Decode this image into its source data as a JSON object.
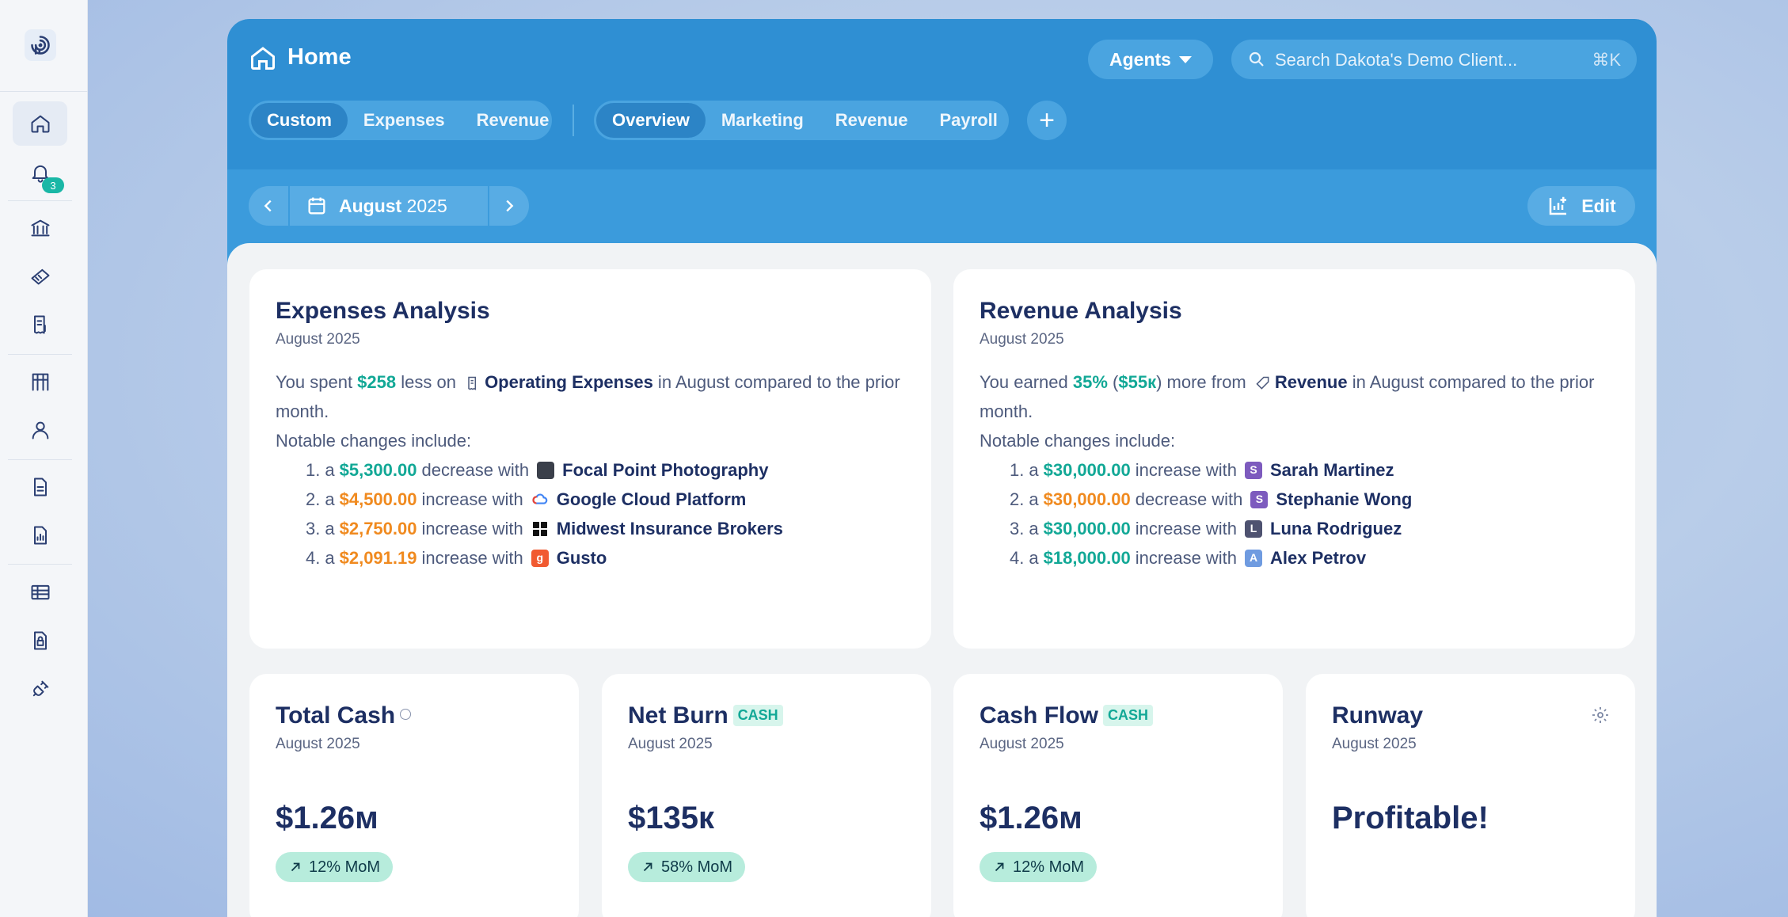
{
  "sidebar": {
    "notification_count": "3"
  },
  "header": {
    "title": "Home",
    "agents_label": "Agents",
    "search_placeholder": "Search Dakota's Demo Client...",
    "search_shortcut": "⌘K",
    "left_tabs": [
      "Custom",
      "Expenses",
      "Revenue"
    ],
    "right_tabs": [
      "Overview",
      "Marketing",
      "Revenue",
      "Payroll"
    ],
    "active_left": "Custom",
    "active_right": "Overview"
  },
  "period": {
    "month": "August",
    "year": "2025"
  },
  "edit_label": "Edit",
  "expenses": {
    "title": "Expenses Analysis",
    "subtitle": "August 2025",
    "intro_a": "You spent ",
    "intro_amount": "$258",
    "intro_b": " less on ",
    "intro_entity": "Operating Expenses",
    "intro_c": " in August compared to the prior month.",
    "notable": "Notable changes include:",
    "items": [
      {
        "num": "1.",
        "amount": "$5,300.00",
        "dir": "decrease",
        "entity": "Focal Point Photography",
        "color": "green"
      },
      {
        "num": "2.",
        "amount": "$4,500.00",
        "dir": "increase",
        "entity": "Google Cloud Platform",
        "color": "orange"
      },
      {
        "num": "3.",
        "amount": "$2,750.00",
        "dir": "increase",
        "entity": "Midwest Insurance Brokers",
        "color": "orange"
      },
      {
        "num": "4.",
        "amount": "$2,091.19",
        "dir": "increase",
        "entity": "Gusto",
        "color": "orange"
      }
    ]
  },
  "revenue": {
    "title": "Revenue Analysis",
    "subtitle": "August 2025",
    "intro_a": "You earned ",
    "intro_pct": "35%",
    "intro_open": " (",
    "intro_amount": "$55к",
    "intro_close": ") more from ",
    "intro_entity": "Revenue",
    "intro_c": " in August compared to the prior month.",
    "notable": "Notable changes include:",
    "items": [
      {
        "num": "1.",
        "amount": "$30,000.00",
        "dir": "increase",
        "entity": "Sarah Martinez",
        "initial": "S",
        "color": "green"
      },
      {
        "num": "2.",
        "amount": "$30,000.00",
        "dir": "decrease",
        "entity": "Stephanie Wong",
        "initial": "S",
        "color": "orange"
      },
      {
        "num": "3.",
        "amount": "$30,000.00",
        "dir": "increase",
        "entity": "Luna Rodriguez",
        "initial": "L",
        "color": "green"
      },
      {
        "num": "4.",
        "amount": "$18,000.00",
        "dir": "increase",
        "entity": "Alex Petrov",
        "initial": "A",
        "color": "green"
      }
    ]
  },
  "metrics": [
    {
      "title": "Total Cash",
      "subtitle": "August 2025",
      "value": "$1.26м",
      "badge": "12% MoM",
      "tag": ""
    },
    {
      "title": "Net Burn",
      "subtitle": "August 2025",
      "value": "$135к",
      "badge": "58% MoM",
      "tag": "CASH"
    },
    {
      "title": "Cash Flow",
      "subtitle": "August 2025",
      "value": "$1.26м",
      "badge": "12% MoM",
      "tag": "CASH"
    },
    {
      "title": "Runway",
      "subtitle": "August 2025",
      "value": "Profitable!",
      "badge": "",
      "tag": ""
    }
  ],
  "colors": {
    "green": "#12a896",
    "orange": "#f08a1f",
    "header_blue": "#2f8fd3"
  }
}
